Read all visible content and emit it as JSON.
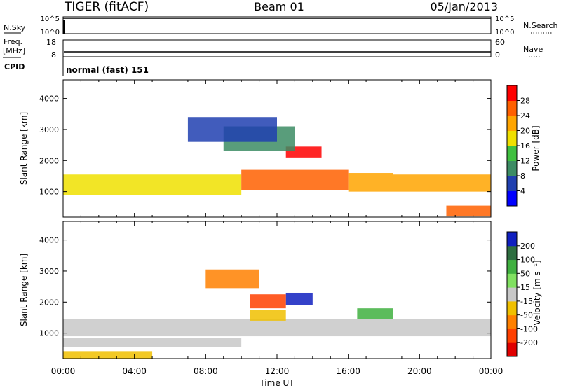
{
  "header": {
    "radar": "TIGER (fitACF)",
    "beam": "Beam 01",
    "date": "05/Jan/2013"
  },
  "nsky_panel": {
    "left_label": "N.Sky",
    "right_label": "N.Search",
    "left_ticks": [
      "10^5",
      "10^0"
    ],
    "right_ticks": [
      "10^5",
      "10^0"
    ]
  },
  "freq_panel": {
    "left_label_top": "Freq.",
    "left_label_bottom": "[MHz]",
    "right_label": "Nave",
    "left_ticks": [
      "18",
      "8"
    ],
    "right_ticks": [
      "60",
      "0"
    ]
  },
  "cpid": {
    "label": "CPID",
    "text": "normal (fast) 151"
  },
  "chart_data": [
    {
      "type": "heatmap",
      "title": "",
      "xlabel": "Time UT",
      "ylabel": "Slant Range [km]",
      "xlim": [
        0,
        24
      ],
      "ylim": [
        180,
        4600
      ],
      "x_ticks": [
        "00:00",
        "04:00",
        "08:00",
        "12:00",
        "16:00",
        "20:00",
        "00:00"
      ],
      "y_ticks": [
        "1000",
        "2000",
        "3000",
        "4000"
      ],
      "y_tick_values": [
        1000,
        2000,
        3000,
        4000
      ],
      "colorbar_label": "Power [dB]",
      "colorbar_ticks": [
        "4",
        "8",
        "12",
        "16",
        "20",
        "24",
        "28"
      ],
      "colorbar_range": [
        0,
        30
      ],
      "colors": [
        "#0000ff",
        "#2040b0",
        "#3c8c64",
        "#40c040",
        "#f0e000",
        "#ffa500",
        "#ff6000",
        "#ff0000"
      ],
      "echo_bands": [
        {
          "t0": 0,
          "t1": 10,
          "r0": 900,
          "r1": 1550,
          "level": 4
        },
        {
          "t0": 10,
          "t1": 16,
          "r0": 1050,
          "r1": 1700,
          "level": 6
        },
        {
          "t0": 16,
          "t1": 18.5,
          "r0": 1000,
          "r1": 1600,
          "level": 5
        },
        {
          "t0": 18.5,
          "t1": 24,
          "r0": 1000,
          "r1": 1550,
          "level": 5
        },
        {
          "t0": 12.5,
          "t1": 14.5,
          "r0": 2100,
          "r1": 2450,
          "level": 7
        },
        {
          "t0": 9,
          "t1": 13,
          "r0": 2300,
          "r1": 3100,
          "level": 2
        },
        {
          "t0": 7,
          "t1": 12,
          "r0": 2600,
          "r1": 3400,
          "level": 1
        },
        {
          "t0": 21.5,
          "t1": 24,
          "r0": 200,
          "r1": 550,
          "level": 6
        }
      ]
    },
    {
      "type": "heatmap",
      "title": "",
      "xlabel": "Time UT",
      "ylabel": "Slant Range [km]",
      "xlim": [
        0,
        24
      ],
      "ylim": [
        180,
        4600
      ],
      "x_ticks": [
        "00:00",
        "04:00",
        "08:00",
        "12:00",
        "16:00",
        "20:00",
        "00:00"
      ],
      "y_ticks": [
        "1000",
        "2000",
        "3000",
        "4000"
      ],
      "y_tick_values": [
        1000,
        2000,
        3000,
        4000
      ],
      "colorbar_label": "Velocity [m s⁻¹]",
      "colorbar_ticks": [
        "200",
        "100",
        "50",
        "15",
        "-15",
        "-50",
        "-100",
        "-200"
      ],
      "colors": [
        "#1020c0",
        "#2e6e40",
        "#40b040",
        "#80e060",
        "#c8c8c8",
        "#f0c000",
        "#ff8000",
        "#ff4000",
        "#e00000"
      ],
      "echo_bands": [
        {
          "t0": 0,
          "t1": 24,
          "r0": 900,
          "r1": 1450,
          "class": 4
        },
        {
          "t0": 0,
          "t1": 10,
          "r0": 550,
          "r1": 850,
          "class": 4
        },
        {
          "t0": 10.5,
          "t1": 12.5,
          "r0": 1400,
          "r1": 1750,
          "class": 5
        },
        {
          "t0": 12.5,
          "t1": 14,
          "r0": 1900,
          "r1": 2300,
          "class": 0
        },
        {
          "t0": 10.5,
          "t1": 12.5,
          "r0": 1800,
          "r1": 2250,
          "class": 7
        },
        {
          "t0": 16.5,
          "t1": 18.5,
          "r0": 1450,
          "r1": 1800,
          "class": 2
        },
        {
          "t0": 8,
          "t1": 11,
          "r0": 2450,
          "r1": 3050,
          "class": 6
        },
        {
          "t0": 0,
          "t1": 5,
          "r0": 180,
          "r1": 420,
          "class": 5
        }
      ]
    }
  ]
}
